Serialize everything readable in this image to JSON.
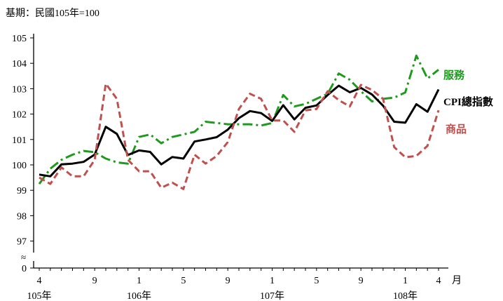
{
  "note": "基期：民國105年=100",
  "chart_data": {
    "type": "line",
    "y_ticks": [
      "105",
      "104",
      "103",
      "102",
      "101",
      "100",
      "99",
      "98",
      "97",
      "0"
    ],
    "ylim": [
      96.7,
      105
    ],
    "axis_break": "≈",
    "x_unit_label": "月",
    "x_tick_labels": [
      {
        "index": 0,
        "label": "4"
      },
      {
        "index": 5,
        "label": "9"
      },
      {
        "index": 9,
        "label": "1"
      },
      {
        "index": 13,
        "label": "5"
      },
      {
        "index": 17,
        "label": "9"
      },
      {
        "index": 21,
        "label": "1"
      },
      {
        "index": 25,
        "label": "5"
      },
      {
        "index": 29,
        "label": "9"
      },
      {
        "index": 33,
        "label": "1"
      },
      {
        "index": 36,
        "label": "4"
      }
    ],
    "year_labels": [
      {
        "index": 0,
        "label": "105年"
      },
      {
        "index": 9,
        "label": "106年"
      },
      {
        "index": 21,
        "label": "107年"
      },
      {
        "index": 33,
        "label": "108年"
      }
    ],
    "series": [
      {
        "name": "服務",
        "color": "#1f9a1f",
        "dash": "14 5 3 5",
        "values": [
          99.25,
          99.85,
          100.2,
          100.4,
          100.55,
          100.5,
          100.25,
          100.1,
          100.05,
          101.1,
          101.2,
          100.85,
          101.1,
          101.2,
          101.3,
          101.7,
          101.65,
          101.6,
          101.6,
          101.6,
          101.55,
          101.65,
          102.75,
          102.3,
          102.4,
          102.6,
          102.8,
          103.6,
          103.35,
          102.9,
          102.5,
          102.6,
          102.65,
          102.85,
          104.3,
          103.4,
          103.75
        ]
      },
      {
        "name": "CPI總指數",
        "color": "#000000",
        "dash": "",
        "values": [
          99.62,
          99.55,
          100.02,
          100.05,
          100.12,
          100.41,
          101.5,
          101.22,
          100.39,
          100.57,
          100.51,
          100.02,
          100.31,
          100.25,
          100.92,
          101.0,
          101.09,
          101.39,
          101.84,
          102.12,
          102.04,
          101.73,
          102.35,
          101.79,
          102.25,
          102.34,
          102.75,
          103.12,
          102.86,
          103.03,
          102.77,
          102.33,
          101.7,
          101.66,
          102.39,
          102.09,
          102.97
        ]
      },
      {
        "name": "商品",
        "color": "#c0504d",
        "dash": "9 5",
        "values": [
          99.5,
          99.25,
          99.9,
          99.55,
          99.55,
          100.2,
          103.2,
          102.6,
          100.2,
          99.75,
          99.75,
          99.1,
          99.3,
          99.05,
          100.4,
          100.05,
          100.35,
          100.9,
          102.2,
          102.8,
          102.6,
          101.75,
          101.75,
          101.3,
          102.15,
          102.2,
          102.9,
          102.55,
          102.3,
          103.15,
          102.95,
          102.6,
          100.7,
          100.3,
          100.35,
          100.75,
          102.15
        ]
      }
    ]
  }
}
